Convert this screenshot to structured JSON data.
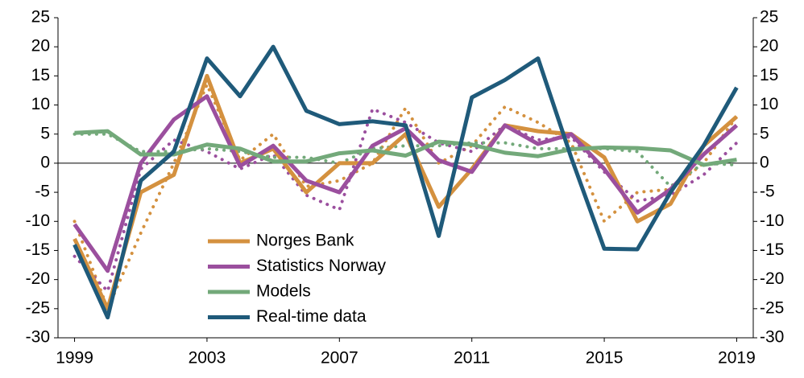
{
  "chart_data": {
    "type": "line",
    "x": [
      1999,
      2000,
      2001,
      2002,
      2003,
      2004,
      2005,
      2006,
      2007,
      2008,
      2009,
      2010,
      2011,
      2012,
      2013,
      2014,
      2015,
      2016,
      2017,
      2018,
      2019
    ],
    "series": [
      {
        "color": "#d4913f",
        "dotted": true,
        "values": [
          -10,
          -25,
          -12,
          0,
          13.5,
          0.5,
          5,
          -4,
          -3,
          0,
          9.5,
          0,
          3,
          9.7,
          7,
          3.5,
          -10,
          -5,
          -4.5,
          0,
          8
        ]
      },
      {
        "color": "#9b4f9e",
        "dotted": true,
        "values": [
          -16,
          -22,
          -1,
          4,
          2,
          -1,
          1.5,
          -5.5,
          -8,
          9.3,
          7,
          3.5,
          2,
          6.5,
          4,
          4.5,
          -1.5,
          -6.5,
          -5.5,
          -2,
          3.5
        ]
      },
      {
        "color": "#73a97a",
        "dotted": true,
        "values": [
          5,
          5,
          2,
          2,
          2.5,
          2,
          1,
          1,
          0,
          2.5,
          3,
          3,
          3.5,
          3.5,
          2.5,
          2.5,
          2.5,
          2,
          -4,
          0,
          -0.3
        ]
      },
      {
        "name": "Norges Bank",
        "color": "#d4913f",
        "values": [
          -13,
          -25,
          -5,
          -2,
          15,
          0,
          2.5,
          -5,
          0,
          0,
          5,
          -7.5,
          -1,
          6.5,
          5.5,
          5,
          1,
          -10,
          -7,
          3,
          8
        ]
      },
      {
        "name": "Statistics Norway",
        "color": "#9b4f9e",
        "values": [
          -10.5,
          -18.5,
          0,
          7.5,
          11.5,
          -0.5,
          3,
          -3,
          -5,
          3,
          6,
          0.5,
          -1.5,
          6.5,
          3.3,
          5,
          -1,
          -8.5,
          -4.5,
          1.5,
          6.5
        ]
      },
      {
        "name": "Models",
        "color": "#73a97a",
        "values": [
          5.2,
          5.5,
          1.5,
          1.5,
          3.2,
          2.5,
          0.3,
          0.3,
          1.7,
          2.2,
          1.3,
          3.7,
          3.2,
          1.8,
          1.2,
          2.4,
          2.7,
          2.6,
          2.2,
          -0.3,
          0.6
        ]
      },
      {
        "name": "Real-time data",
        "color": "#1f5a7a",
        "values": [
          -14,
          -26.5,
          -3,
          2,
          18,
          11.5,
          20,
          9,
          6.7,
          7.2,
          6.5,
          -12.5,
          11.3,
          14.3,
          18,
          1,
          -14.7,
          -14.8,
          -5,
          3,
          13
        ]
      }
    ],
    "xlim": [
      1998.5,
      2019.5
    ],
    "xticks": [
      1999,
      2003,
      2007,
      2011,
      2015,
      2019
    ],
    "ylim": [
      -30,
      25
    ],
    "yticks": [
      -30,
      -25,
      -20,
      -15,
      -10,
      -5,
      0,
      5,
      10,
      15,
      20,
      25
    ],
    "y2lim": [
      -30,
      25
    ],
    "y2ticks": [
      -30,
      -25,
      -20,
      -15,
      -10,
      -5,
      0,
      5,
      10,
      15,
      20,
      25
    ],
    "legend": "lower-left"
  }
}
